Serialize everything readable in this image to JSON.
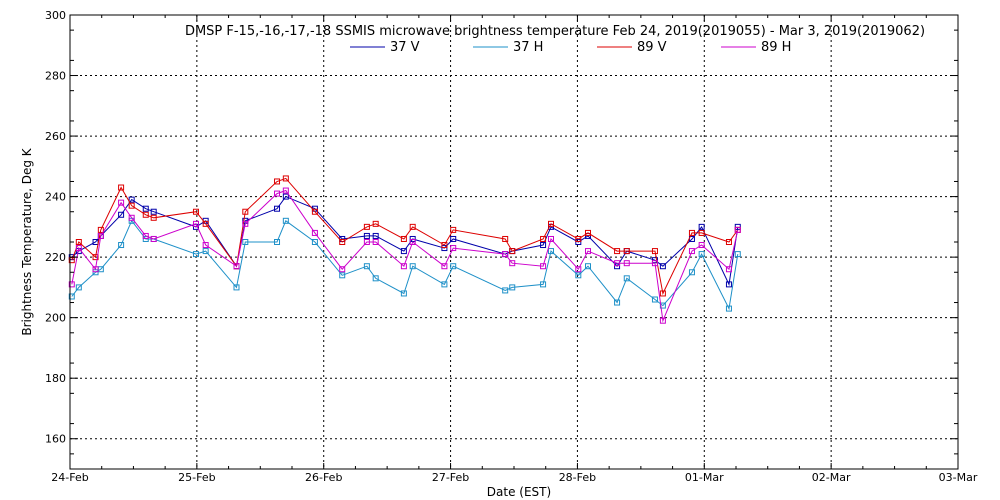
{
  "chart_data": {
    "type": "line",
    "title": "DMSP F-15,-16,-17,-18 SSMIS microwave brightness temperature Feb 24, 2019(2019055) - Mar  3, 2019(2019062)",
    "xlabel": "Date (EST)",
    "ylabel": "Brightness Temperature, Deg K",
    "xlim": [
      "2019-02-24",
      "2019-03-03"
    ],
    "ylim": [
      150,
      300
    ],
    "x_ticks": [
      "24-Feb",
      "25-Feb",
      "26-Feb",
      "27-Feb",
      "28-Feb",
      "01-Mar",
      "02-Mar",
      "03-Mar"
    ],
    "y_ticks": [
      160,
      180,
      200,
      220,
      240,
      260,
      280,
      300
    ],
    "grid": true,
    "legend_position": "top-center",
    "series": [
      {
        "name": "37 V",
        "color": "#0000aa",
        "points": [
          [
            "2019-02-24T00:20",
            220
          ],
          [
            "2019-02-24T01:40",
            222
          ],
          [
            "2019-02-24T04:50",
            225
          ],
          [
            "2019-02-24T05:50",
            227
          ],
          [
            "2019-02-24T09:40",
            234
          ],
          [
            "2019-02-24T11:40",
            239
          ],
          [
            "2019-02-24T14:20",
            236
          ],
          [
            "2019-02-24T15:50",
            235
          ],
          [
            "2019-02-24T23:50",
            230
          ],
          [
            "2019-02-25T01:40",
            232
          ],
          [
            "2019-02-25T07:30",
            217
          ],
          [
            "2019-02-25T09:10",
            232
          ],
          [
            "2019-02-25T15:10",
            236
          ],
          [
            "2019-02-25T16:50",
            240
          ],
          [
            "2019-02-25T22:20",
            236
          ],
          [
            "2019-02-26T03:30",
            226
          ],
          [
            "2019-02-26T08:10",
            227
          ],
          [
            "2019-02-26T09:50",
            227
          ],
          [
            "2019-02-26T15:10",
            222
          ],
          [
            "2019-02-26T16:50",
            226
          ],
          [
            "2019-02-26T22:50",
            223
          ],
          [
            "2019-02-27T00:30",
            226
          ],
          [
            "2019-02-27T10:20",
            221
          ],
          [
            "2019-02-27T11:40",
            222
          ],
          [
            "2019-02-27T17:30",
            224
          ],
          [
            "2019-02-27T19:00",
            230
          ],
          [
            "2019-02-28T00:10",
            225
          ],
          [
            "2019-02-28T02:00",
            227
          ],
          [
            "2019-02-28T07:30",
            217
          ],
          [
            "2019-02-28T09:20",
            222
          ],
          [
            "2019-02-28T14:40",
            219
          ],
          [
            "2019-02-28T16:10",
            217
          ],
          [
            "2019-02-28T21:40",
            226
          ],
          [
            "2019-02-28T23:30",
            230
          ],
          [
            "2019-03-01T04:40",
            211
          ],
          [
            "2019-03-01T06:20",
            230
          ]
        ]
      },
      {
        "name": "37 H",
        "color": "#1e90c8",
        "points": [
          [
            "2019-02-24T00:20",
            207
          ],
          [
            "2019-02-24T01:40",
            210
          ],
          [
            "2019-02-24T04:50",
            215
          ],
          [
            "2019-02-24T05:50",
            216
          ],
          [
            "2019-02-24T09:40",
            224
          ],
          [
            "2019-02-24T11:40",
            232
          ],
          [
            "2019-02-24T14:20",
            226
          ],
          [
            "2019-02-24T15:50",
            226
          ],
          [
            "2019-02-24T23:50",
            221
          ],
          [
            "2019-02-25T01:40",
            222
          ],
          [
            "2019-02-25T07:30",
            210
          ],
          [
            "2019-02-25T09:10",
            225
          ],
          [
            "2019-02-25T15:10",
            225
          ],
          [
            "2019-02-25T16:50",
            232
          ],
          [
            "2019-02-25T22:20",
            225
          ],
          [
            "2019-02-26T03:30",
            214
          ],
          [
            "2019-02-26T08:10",
            217
          ],
          [
            "2019-02-26T09:50",
            213
          ],
          [
            "2019-02-26T15:10",
            208
          ],
          [
            "2019-02-26T16:50",
            217
          ],
          [
            "2019-02-26T22:50",
            211
          ],
          [
            "2019-02-27T00:30",
            217
          ],
          [
            "2019-02-27T10:20",
            209
          ],
          [
            "2019-02-27T11:40",
            210
          ],
          [
            "2019-02-27T17:30",
            211
          ],
          [
            "2019-02-27T19:00",
            222
          ],
          [
            "2019-02-28T00:10",
            214
          ],
          [
            "2019-02-28T02:00",
            217
          ],
          [
            "2019-02-28T07:30",
            205
          ],
          [
            "2019-02-28T09:20",
            213
          ],
          [
            "2019-02-28T14:40",
            206
          ],
          [
            "2019-02-28T16:10",
            204
          ],
          [
            "2019-02-28T21:40",
            215
          ],
          [
            "2019-02-28T23:30",
            221
          ],
          [
            "2019-03-01T04:40",
            203
          ],
          [
            "2019-03-01T06:20",
            221
          ]
        ]
      },
      {
        "name": "89 V",
        "color": "#dd0000",
        "points": [
          [
            "2019-02-24T00:20",
            219
          ],
          [
            "2019-02-24T01:40",
            225
          ],
          [
            "2019-02-24T04:50",
            220
          ],
          [
            "2019-02-24T05:50",
            229
          ],
          [
            "2019-02-24T09:40",
            243
          ],
          [
            "2019-02-24T11:40",
            237
          ],
          [
            "2019-02-24T14:20",
            234
          ],
          [
            "2019-02-24T15:50",
            233
          ],
          [
            "2019-02-24T23:50",
            235
          ],
          [
            "2019-02-25T01:40",
            231
          ],
          [
            "2019-02-25T07:30",
            217
          ],
          [
            "2019-02-25T09:10",
            235
          ],
          [
            "2019-02-25T15:10",
            245
          ],
          [
            "2019-02-25T16:50",
            246
          ],
          [
            "2019-02-25T22:20",
            235
          ],
          [
            "2019-02-26T03:30",
            225
          ],
          [
            "2019-02-26T08:10",
            230
          ],
          [
            "2019-02-26T09:50",
            231
          ],
          [
            "2019-02-26T15:10",
            226
          ],
          [
            "2019-02-26T16:50",
            230
          ],
          [
            "2019-02-26T22:50",
            224
          ],
          [
            "2019-02-27T00:30",
            229
          ],
          [
            "2019-02-27T10:20",
            226
          ],
          [
            "2019-02-27T11:40",
            222
          ],
          [
            "2019-02-27T17:30",
            226
          ],
          [
            "2019-02-27T19:00",
            231
          ],
          [
            "2019-02-28T00:10",
            226
          ],
          [
            "2019-02-28T02:00",
            228
          ],
          [
            "2019-02-28T07:30",
            222
          ],
          [
            "2019-02-28T09:20",
            222
          ],
          [
            "2019-02-28T14:40",
            222
          ],
          [
            "2019-02-28T16:10",
            208
          ],
          [
            "2019-02-28T21:40",
            228
          ],
          [
            "2019-02-28T23:30",
            228
          ],
          [
            "2019-03-01T04:40",
            225
          ],
          [
            "2019-03-01T06:20",
            229
          ]
        ]
      },
      {
        "name": "89 H",
        "color": "#cc00cc",
        "points": [
          [
            "2019-02-24T00:20",
            211
          ],
          [
            "2019-02-24T01:40",
            223
          ],
          [
            "2019-02-24T04:50",
            216
          ],
          [
            "2019-02-24T05:50",
            227
          ],
          [
            "2019-02-24T09:40",
            238
          ],
          [
            "2019-02-24T11:40",
            233
          ],
          [
            "2019-02-24T14:20",
            227
          ],
          [
            "2019-02-24T15:50",
            226
          ],
          [
            "2019-02-24T23:50",
            231
          ],
          [
            "2019-02-25T01:40",
            224
          ],
          [
            "2019-02-25T07:30",
            217
          ],
          [
            "2019-02-25T09:10",
            231
          ],
          [
            "2019-02-25T15:10",
            241
          ],
          [
            "2019-02-25T16:50",
            242
          ],
          [
            "2019-02-25T22:20",
            228
          ],
          [
            "2019-02-26T03:30",
            216
          ],
          [
            "2019-02-26T08:10",
            225
          ],
          [
            "2019-02-26T09:50",
            225
          ],
          [
            "2019-02-26T15:10",
            217
          ],
          [
            "2019-02-26T16:50",
            225
          ],
          [
            "2019-02-26T22:50",
            217
          ],
          [
            "2019-02-27T00:30",
            223
          ],
          [
            "2019-02-27T10:20",
            221
          ],
          [
            "2019-02-27T11:40",
            218
          ],
          [
            "2019-02-27T17:30",
            217
          ],
          [
            "2019-02-27T19:00",
            226
          ],
          [
            "2019-02-28T00:10",
            216
          ],
          [
            "2019-02-28T02:00",
            222
          ],
          [
            "2019-02-28T07:30",
            218
          ],
          [
            "2019-02-28T09:20",
            218
          ],
          [
            "2019-02-28T14:40",
            218
          ],
          [
            "2019-02-28T16:10",
            199
          ],
          [
            "2019-02-28T21:40",
            222
          ],
          [
            "2019-02-28T23:30",
            224
          ],
          [
            "2019-03-01T04:40",
            216
          ],
          [
            "2019-03-01T06:20",
            229
          ]
        ]
      }
    ]
  }
}
